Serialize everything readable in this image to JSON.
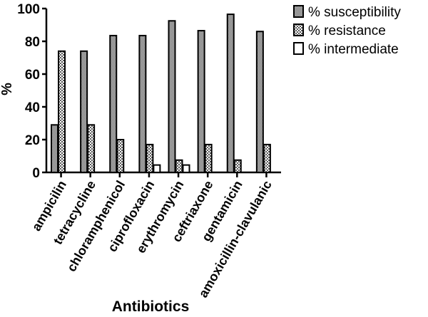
{
  "chart_data": {
    "type": "bar",
    "title": "",
    "xlabel": "Antibiotics",
    "ylabel": "%",
    "ylim": [
      0,
      100
    ],
    "yticks": [
      0,
      20,
      40,
      60,
      80,
      100
    ],
    "grid": false,
    "legend_position": "top-right",
    "categories": [
      "ampicilin",
      "tetracycline",
      "chloramphenicol",
      "ciprofloxacin",
      "erythromycin",
      "ceftriaxone",
      "gentamicin",
      "amoxicillin-clavulanic"
    ],
    "series": [
      {
        "name": "% susceptibility",
        "values": [
          29,
          74,
          83.5,
          83.5,
          92.5,
          86.5,
          96.5,
          86
        ],
        "fill": "#9a9a9a",
        "pattern": "dense-gray"
      },
      {
        "name": " % resistance",
        "values": [
          74,
          29,
          20,
          17,
          7.5,
          17,
          7.5,
          17
        ],
        "fill": "#ffffff",
        "pattern": "checker"
      },
      {
        "name": "% intermediate",
        "values": [
          0,
          0,
          0,
          4.5,
          4.5,
          0,
          0,
          0
        ],
        "fill": "#ffffff",
        "pattern": "none"
      }
    ]
  }
}
